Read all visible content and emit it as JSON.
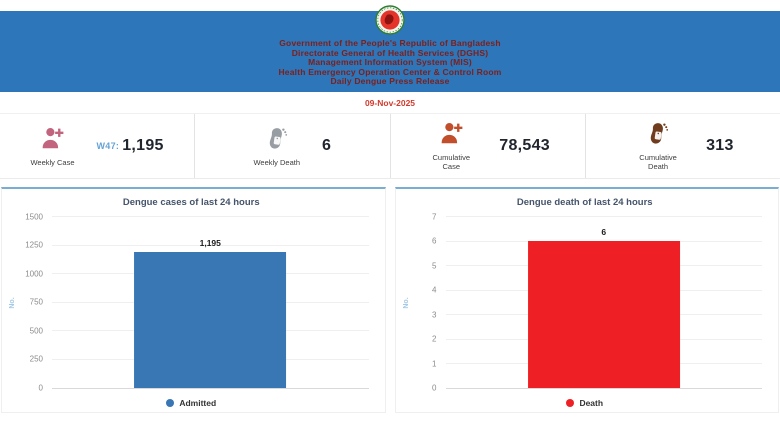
{
  "header": {
    "lines": [
      "Government of the People's Republic of Bangladesh",
      "Directorate General of Health Services (DGHS)",
      "Management Information System (MIS)",
      "Health Emergency Operation Center & Control Room",
      "Daily Dengue Press Release"
    ],
    "date": "09-Nov-2025",
    "colors": {
      "band": "#2e76ba",
      "text": "#7d1f1a",
      "date": "#d23a2e"
    }
  },
  "stats": {
    "cards": [
      {
        "label": "Weekly Case",
        "prefix": "W47:",
        "value": "1,195",
        "icon": "person-plus-icon",
        "icon_color": "#c2647e",
        "prefix_color": "#65a3d4"
      },
      {
        "label": "Weekly Death",
        "prefix": "",
        "value": "6",
        "icon": "foot-tag-icon",
        "icon_color": "#979da3",
        "prefix_color": "#65a3d4"
      },
      {
        "label": "Cumulative Case",
        "prefix": "",
        "value": "78,543",
        "icon": "person-plus-icon",
        "icon_color": "#c14f2b",
        "prefix_color": "#65a3d4"
      },
      {
        "label": "Cumulative Death",
        "prefix": "",
        "value": "313",
        "icon": "foot-tag-icon",
        "icon_color": "#6f3d1e",
        "prefix_color": "#65a3d4"
      }
    ]
  },
  "chart_data": [
    {
      "type": "bar",
      "title": "Dengue cases of last 24 hours",
      "categories": [
        "Admitted"
      ],
      "values": [
        1195
      ],
      "value_labels": [
        "1,195"
      ],
      "xlabel": "",
      "ylabel": "No.",
      "ylim": [
        0,
        1500
      ],
      "yticks": [
        0,
        250,
        500,
        750,
        1000,
        1250,
        1500
      ],
      "grid": true,
      "bar_color": "#3876b4",
      "ylabel_color": "#a5c9e6",
      "legend": [
        {
          "label": "Admitted",
          "color": "#3876b4"
        }
      ],
      "legend_position": "bottom"
    },
    {
      "type": "bar",
      "title": "Dengue death of last 24 hours",
      "categories": [
        "Death"
      ],
      "values": [
        6
      ],
      "value_labels": [
        "6"
      ],
      "xlabel": "",
      "ylabel": "No.",
      "ylim": [
        0,
        7
      ],
      "yticks": [
        0,
        1,
        2,
        3,
        4,
        5,
        6,
        7
      ],
      "grid": true,
      "bar_color": "#ef2025",
      "ylabel_color": "#a5c9e6",
      "legend": [
        {
          "label": "Death",
          "color": "#ef2025"
        }
      ],
      "legend_position": "bottom"
    }
  ]
}
